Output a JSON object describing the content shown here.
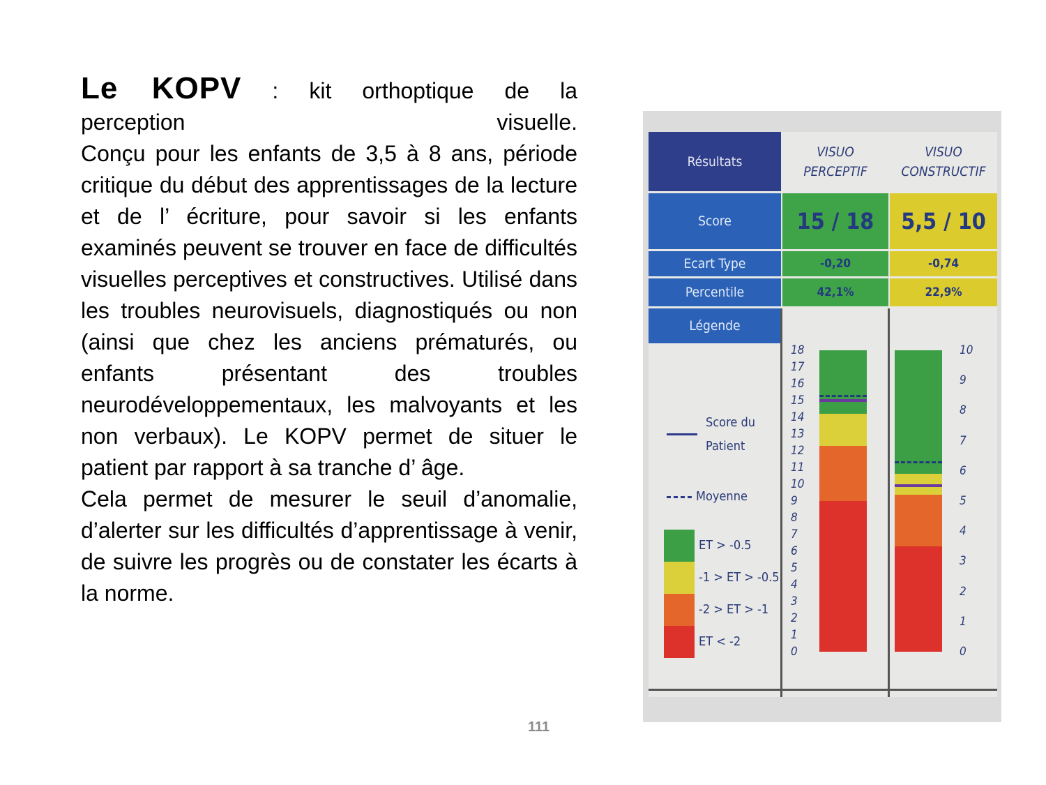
{
  "slide": {
    "title_bold": "Le KOPV",
    "title_rest": " : kit orthoptique de la",
    "title_line2_a": "perception",
    "title_line2_b": "visuelle.",
    "paragraph1": "Conçu pour les enfants de 3,5 à 8 ans, période critique du début des apprentissages de la lecture et de l’ écriture, pour savoir si les enfants examinés peuvent se trouver en face de difficultés visuelles perceptives et constructives. Utilisé dans les troubles neurovisuels, diagnostiqués ou non (ainsi que chez les anciens prématurés, ou enfants présentant des troubles neurodéveloppementaux, les malvoyants et les non verbaux). Le KOPV permet de situer le patient par rapport à sa tranche d’ âge.",
    "paragraph2": "Cela permet de mesurer le seuil d’anomalie, d’alerter sur les difficultés d’apprentissage à venir, de suivre les progrès ou de constater les écarts à la norme.",
    "page_number": "111"
  },
  "results": {
    "header_label": "Résultats",
    "col1_line1": "VISUO",
    "col1_line2": "PERCEPTIF",
    "col2_line1": "VISUO",
    "col2_line2": "CONSTRUCTIF",
    "row_score": "Score",
    "row_ecart": "Ecart Type",
    "row_percentile": "Percentile",
    "row_legende": "Légende",
    "perceptif": {
      "score": "15 / 18",
      "ecart": "-0,20",
      "percentile": "42,1%",
      "max": 18,
      "patient": 15,
      "mean": 15.3,
      "bands": {
        "red_max": 9,
        "orange_max": 12.3,
        "yellow_max": 14.2
      }
    },
    "constructif": {
      "score": "5,5 / 10",
      "ecart": "-0,74",
      "percentile": "22,9%",
      "max": 10,
      "patient": 5.5,
      "mean": 6.3,
      "bands": {
        "red_max": 3.5,
        "orange_max": 5.2,
        "yellow_max": 5.9
      }
    },
    "ticks_perceptif": [
      "18",
      "17",
      "16",
      "15",
      "14",
      "13",
      "12",
      "11",
      "10",
      "9",
      "8",
      "7",
      "6",
      "5",
      "4",
      "3",
      "2",
      "1",
      "0"
    ],
    "ticks_constructif": [
      "10",
      "9",
      "8",
      "7",
      "6",
      "5",
      "4",
      "3",
      "2",
      "1",
      "0"
    ],
    "legend": {
      "patient_line1": "Score du",
      "patient_line2": "Patient",
      "mean": "Moyenne",
      "green": "ET > -0.5",
      "yellow": "-1 > ET > -0.5",
      "orange": "-2 > ET > -1",
      "red": "ET < -2"
    },
    "colors": {
      "navy": "#2f3e8a",
      "blue": "#2b62b8",
      "green": "#3d9f45",
      "yellow": "#dcd03a",
      "orange": "#e5662a",
      "red": "#dc322b",
      "patient": "#6a3aa0"
    }
  }
}
